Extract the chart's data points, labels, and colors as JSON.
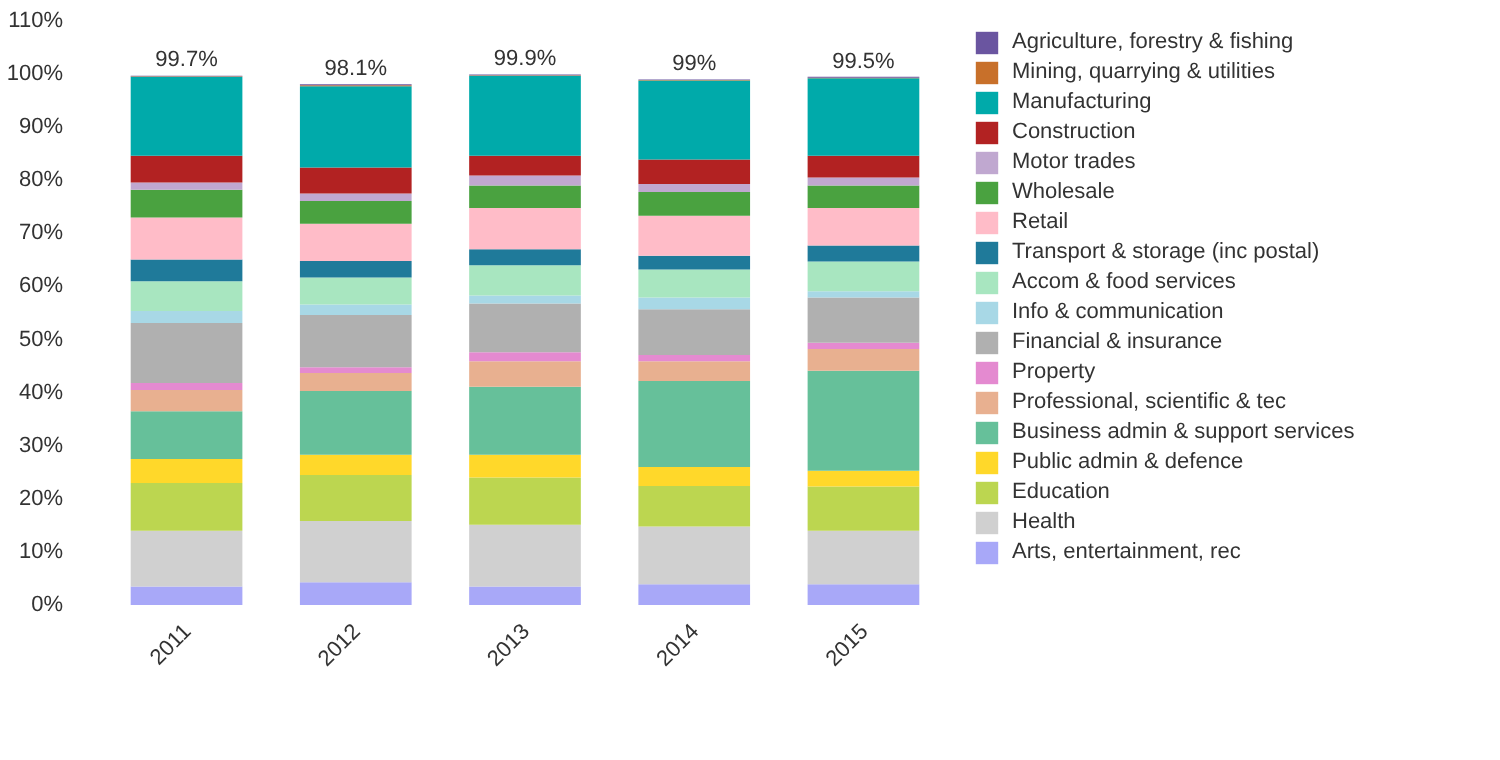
{
  "chart_data": {
    "type": "bar",
    "stacked": true,
    "categories": [
      "2011",
      "2012",
      "2013",
      "2014",
      "2015"
    ],
    "ylim": [
      0,
      110
    ],
    "yticks": [
      {
        "value": 0,
        "label": "0%"
      },
      {
        "value": 10,
        "label": "10%"
      },
      {
        "value": 20,
        "label": "20%"
      },
      {
        "value": 30,
        "label": "30%"
      },
      {
        "value": 40,
        "label": "40%"
      },
      {
        "value": 50,
        "label": "50%"
      },
      {
        "value": 60,
        "label": "60%"
      },
      {
        "value": 70,
        "label": "70%"
      },
      {
        "value": 80,
        "label": "80%"
      },
      {
        "value": 90,
        "label": "90%"
      },
      {
        "value": 100,
        "label": "100%"
      },
      {
        "value": 110,
        "label": "110%"
      }
    ],
    "totals": [
      "99.7%",
      "98.1%",
      "99.9%",
      "99%",
      "99.5%"
    ],
    "legend": "right",
    "grid": false,
    "series": [
      {
        "name": "Arts, entertainment, rec",
        "color": "#a8a8f8",
        "values": [
          3.5,
          4.3,
          3.5,
          3.9,
          3.9
        ]
      },
      {
        "name": "Health",
        "color": "#d0d0d0",
        "values": [
          10.5,
          11.5,
          11.6,
          10.9,
          10.1
        ]
      },
      {
        "name": "Education",
        "color": "#bcd650",
        "values": [
          9.0,
          8.7,
          8.9,
          7.6,
          8.3
        ]
      },
      {
        "name": "Public admin & defence",
        "color": "#ffd82a",
        "values": [
          4.5,
          3.8,
          4.3,
          3.6,
          3.0
        ]
      },
      {
        "name": "Business admin & support services",
        "color": "#66c09a",
        "values": [
          9.0,
          12.0,
          12.8,
          16.2,
          18.8
        ]
      },
      {
        "name": "Professional, scientific & tec",
        "color": "#e8b090",
        "values": [
          4.0,
          3.4,
          4.8,
          3.7,
          4.1
        ]
      },
      {
        "name": "Property",
        "color": "#e48ad0",
        "values": [
          1.3,
          1.1,
          1.7,
          1.2,
          1.2
        ]
      },
      {
        "name": "Financial & insurance",
        "color": "#b0b0b0",
        "values": [
          11.3,
          9.8,
          9.2,
          8.6,
          8.5
        ]
      },
      {
        "name": "Info & communication",
        "color": "#a8d8e6",
        "values": [
          2.3,
          2.0,
          1.5,
          2.2,
          1.2
        ]
      },
      {
        "name": "Accom & food services",
        "color": "#a8e6c0",
        "values": [
          5.6,
          5.1,
          5.7,
          5.3,
          5.6
        ]
      },
      {
        "name": "Transport & storage (inc postal)",
        "color": "#1f7a9a",
        "values": [
          4.1,
          3.1,
          3.0,
          2.6,
          3.0
        ]
      },
      {
        "name": "Retail",
        "color": "#ffbcc8",
        "values": [
          7.9,
          7.0,
          7.8,
          7.5,
          7.1
        ]
      },
      {
        "name": "Wholesale",
        "color": "#4aa240",
        "values": [
          5.2,
          4.3,
          4.2,
          4.5,
          4.2
        ]
      },
      {
        "name": "Motor trades",
        "color": "#c0a8d0",
        "values": [
          1.4,
          1.4,
          1.9,
          1.5,
          1.5
        ]
      },
      {
        "name": "Construction",
        "color": "#b22222",
        "values": [
          5.0,
          4.9,
          3.7,
          4.6,
          4.1
        ]
      },
      {
        "name": "Manufacturing",
        "color": "#00aaaa",
        "values": [
          14.9,
          15.3,
          15.1,
          14.9,
          14.6
        ]
      },
      {
        "name": "Mining, quarrying & utilities",
        "color": "#c8702a",
        "values": [
          0.1,
          0.2,
          0.1,
          0.1,
          0.1
        ]
      },
      {
        "name": "Agriculture, forestry & fishing",
        "color": "#6a55a0",
        "values": [
          0.1,
          0.2,
          0.1,
          0.1,
          0.2
        ]
      }
    ]
  }
}
